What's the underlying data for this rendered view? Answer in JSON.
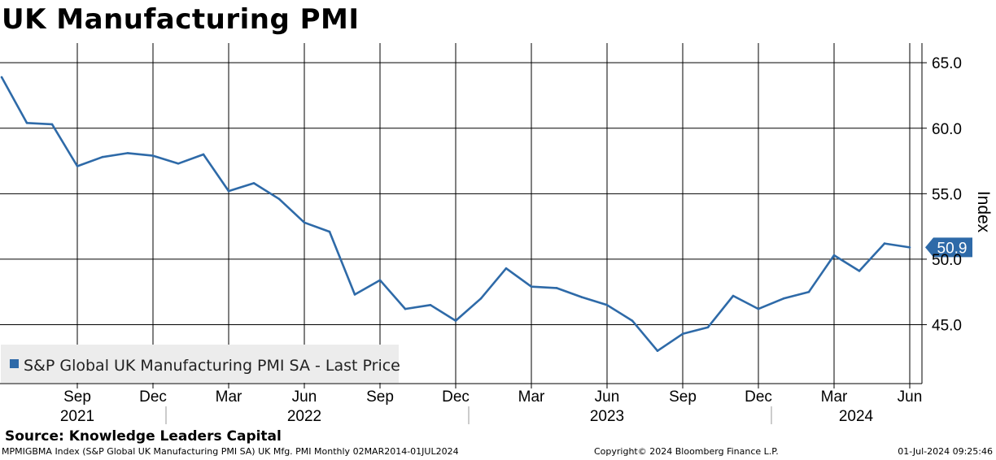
{
  "chart_data": {
    "type": "line",
    "title": "UK Manufacturing PMI",
    "ylabel": "Index",
    "ylim": [
      40.5,
      66.5
    ],
    "y_ticks": [
      45.0,
      50.0,
      55.0,
      60.0,
      65.0
    ],
    "y_tick_labels": [
      "45.0",
      "50.0",
      "55.0",
      "60.0",
      "65.0"
    ],
    "grid": true,
    "legend_position": "bottom-left",
    "x_month_ticks": [
      "Sep",
      "Dec",
      "Mar",
      "Jun",
      "Sep",
      "Dec",
      "Mar",
      "Jun",
      "Sep",
      "Dec",
      "Mar",
      "Jun"
    ],
    "x_year_labels": [
      "2021",
      "2022",
      "2023",
      "2024"
    ],
    "series": [
      {
        "name": "S&P Global UK Manufacturing PMI SA - Last Price",
        "color": "#2e6aa8",
        "last_value_label": "50.9",
        "x": [
          "2021-06",
          "2021-07",
          "2021-08",
          "2021-09",
          "2021-10",
          "2021-11",
          "2021-12",
          "2022-01",
          "2022-02",
          "2022-03",
          "2022-04",
          "2022-05",
          "2022-06",
          "2022-07",
          "2022-08",
          "2022-09",
          "2022-10",
          "2022-11",
          "2022-12",
          "2023-01",
          "2023-02",
          "2023-03",
          "2023-04",
          "2023-05",
          "2023-06",
          "2023-07",
          "2023-08",
          "2023-09",
          "2023-10",
          "2023-11",
          "2023-12",
          "2024-01",
          "2024-02",
          "2024-03",
          "2024-04",
          "2024-05",
          "2024-06"
        ],
        "values": [
          63.9,
          60.4,
          60.3,
          57.1,
          57.8,
          58.1,
          57.9,
          57.3,
          58.0,
          55.2,
          55.8,
          54.6,
          52.8,
          52.1,
          47.3,
          48.4,
          46.2,
          46.5,
          45.3,
          47.0,
          49.3,
          47.9,
          47.8,
          47.1,
          46.5,
          45.3,
          43.0,
          44.3,
          44.8,
          47.2,
          46.2,
          47.0,
          47.5,
          50.3,
          49.1,
          51.2,
          50.9
        ]
      }
    ]
  },
  "source_text": "Source:  Knowledge Leaders Capital",
  "footer": {
    "left": "MPMIGBMA Index (S&P Global UK Manufacturing PMI SA) UK Mfg. PMI  Monthly 02MAR2014-01JUL2024",
    "center": "Copyright© 2024 Bloomberg Finance L.P.",
    "right": "01-Jul-2024 09:25:46"
  }
}
